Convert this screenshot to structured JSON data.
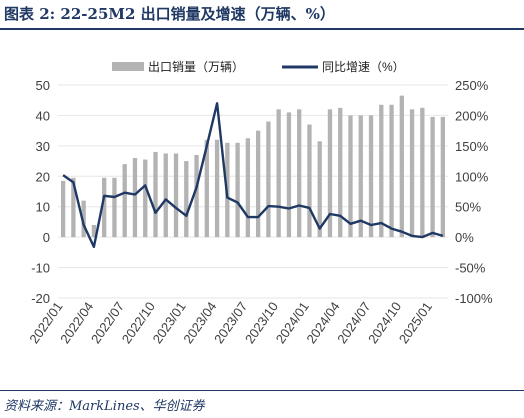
{
  "header": {
    "title": "图表 2:  22-25M2 出口销量及增速（万辆、%）"
  },
  "footer": {
    "source": "资料来源：MarkLines、华创证券"
  },
  "colors": {
    "bar": "#b3b3b3",
    "line": "#1f3864",
    "text": "#404040",
    "accent": "#1f3864"
  },
  "chart_data": {
    "type": "bar",
    "legend": {
      "position": "top",
      "bar_label": "出口销量（万辆）",
      "line_label": "同比增速（%）"
    },
    "left_axis": {
      "range": [
        -20,
        50
      ],
      "ticks": [
        -20,
        -10,
        0,
        10,
        20,
        30,
        40,
        50
      ]
    },
    "right_axis": {
      "range": [
        -100,
        250
      ],
      "ticks": [
        "-100%",
        "-50%",
        "0%",
        "50%",
        "100%",
        "150%",
        "200%",
        "250%"
      ]
    },
    "categories": [
      "2022/01",
      "2022/02",
      "2022/03",
      "2022/04",
      "2022/05",
      "2022/06",
      "2022/07",
      "2022/08",
      "2022/09",
      "2022/10",
      "2022/11",
      "2022/12",
      "2023/01",
      "2023/02",
      "2023/03",
      "2023/04",
      "2023/05",
      "2023/06",
      "2023/07",
      "2023/08",
      "2023/09",
      "2023/10",
      "2023/11",
      "2023/12",
      "2024/01",
      "2024/02",
      "2024/03",
      "2024/04",
      "2024/05",
      "2024/06",
      "2024/07",
      "2024/08",
      "2024/09",
      "2024/10",
      "2024/11",
      "2024/12",
      "2025/01",
      "2025/02"
    ],
    "x_tick_labels": [
      "2022/01",
      "2022/04",
      "2022/07",
      "2022/10",
      "2023/01",
      "2023/04",
      "2023/07",
      "2023/10",
      "2024/01",
      "2024/04",
      "2024/07",
      "2024/10",
      "2025/01"
    ],
    "x_tick_every": 3,
    "series": [
      {
        "name": "出口销量（万辆）",
        "type": "bar",
        "axis": "left",
        "values": [
          18.5,
          19.5,
          12,
          4,
          19.5,
          19.5,
          24,
          26,
          25.5,
          28,
          27.5,
          27.5,
          25,
          27,
          32,
          32,
          31,
          31,
          32.5,
          35,
          38,
          42,
          41,
          42,
          37,
          31.5,
          42,
          42.5,
          40,
          40,
          40,
          43.5,
          43.5,
          46.5,
          42,
          42.5,
          39.5,
          39.5
        ]
      },
      {
        "name": "同比增速（%）",
        "type": "line",
        "axis": "right",
        "values": [
          102,
          90,
          20,
          -16,
          68,
          66,
          73,
          70,
          85,
          40,
          62,
          48,
          35,
          82,
          150,
          220,
          65,
          57,
          33,
          33,
          51,
          50,
          47,
          52,
          48,
          14,
          38,
          35,
          22,
          27,
          20,
          23,
          14,
          9,
          2,
          0,
          7,
          2
        ]
      }
    ]
  }
}
